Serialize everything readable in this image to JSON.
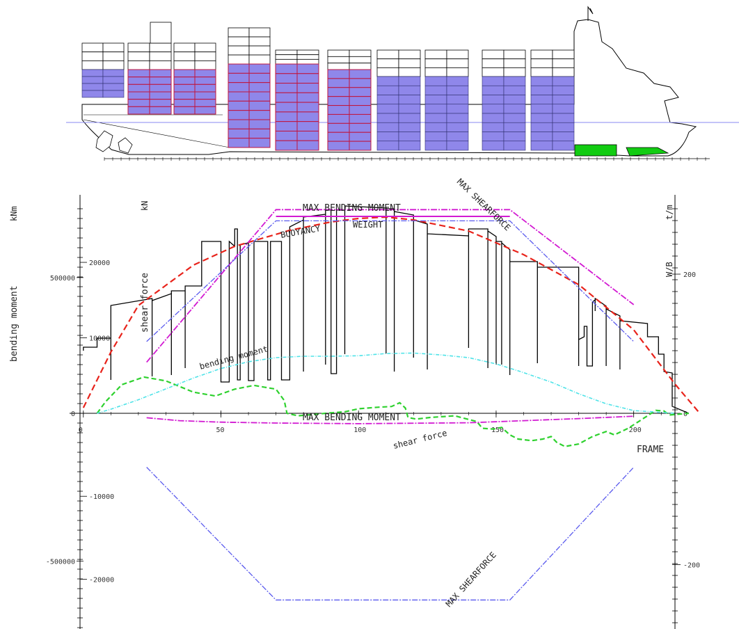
{
  "chart_data": {
    "type": "line",
    "frame_label": "FRAME",
    "x_range": [
      -5,
      215
    ],
    "x_ticks": [
      {
        "value": 0,
        "label": "0"
      },
      {
        "value": 50,
        "label": "50"
      },
      {
        "value": 100,
        "label": "100"
      },
      {
        "value": 150,
        "label": "150"
      },
      {
        "value": 200,
        "label": "200"
      }
    ],
    "axes": {
      "bending_moment": {
        "label": "bending moment",
        "unit": "kNm",
        "range": [
          -730000,
          820000
        ],
        "ticks": [
          {
            "value": 500000,
            "label": "500000"
          },
          {
            "value": 0,
            "label": "0"
          },
          {
            "value": -500000,
            "label": "-500000"
          }
        ]
      },
      "shear_force": {
        "label": "kN",
        "range": [
          -26000,
          29500
        ],
        "ticks": [
          {
            "value": 20000,
            "label": "20000"
          },
          {
            "value": 10000,
            "label": "10000"
          },
          {
            "value": 0,
            "label": "0"
          },
          {
            "value": -10000,
            "label": "-10000"
          },
          {
            "value": -20000,
            "label": "-20000"
          }
        ]
      },
      "weight_buoyancy": {
        "label": "W/B",
        "unit": "t/m",
        "range": [
          -285,
          320
        ],
        "ticks": [
          {
            "value": 200,
            "label": "200"
          },
          {
            "value": 0,
            "label": "0"
          },
          {
            "value": -200,
            "label": "-200"
          }
        ]
      }
    },
    "annotations": {
      "max_bending_moment": "MAX BENDING MOMENT",
      "max_shearforce": "MAX SHEARFORCE",
      "buoyancy": "BUOYANCY",
      "weight": "WEIGHT",
      "shear_force": "shear force",
      "bending_moment": "bending moment"
    },
    "colors": {
      "weight": "#000000",
      "buoyancy": "#e8231b",
      "bending_moment": "#4fe3e8",
      "shear_force": "#2ed12e",
      "max_bending_moment": "#d21ad2",
      "max_shearforce": "#5a5aee",
      "container_fill": "#8f87ea",
      "tank_fill": "#12cc12"
    },
    "series": [
      {
        "name": "WEIGHT",
        "axis": "weight_buoyancy",
        "points": [
          [
            0,
            90
          ],
          [
            0,
            95
          ],
          [
            5,
            95
          ],
          [
            5,
            108
          ],
          [
            10,
            108
          ],
          [
            10,
            48
          ],
          [
            10,
            155
          ],
          [
            25,
            165
          ],
          [
            25,
            53
          ],
          [
            25,
            162
          ],
          [
            32,
            172
          ],
          [
            32,
            55
          ],
          [
            32,
            176
          ],
          [
            37,
            176
          ],
          [
            37,
            65
          ],
          [
            37,
            183
          ],
          [
            43,
            183
          ],
          [
            43,
            247
          ],
          [
            50,
            247
          ],
          [
            50,
            45
          ],
          [
            53,
            45
          ],
          [
            53,
            247
          ],
          [
            55,
            240
          ],
          [
            55,
            265
          ],
          [
            56,
            265
          ],
          [
            56,
            48
          ],
          [
            57,
            48
          ],
          [
            57,
            242
          ],
          [
            60,
            245
          ],
          [
            60,
            47
          ],
          [
            62,
            47
          ],
          [
            62,
            247
          ],
          [
            67,
            247
          ],
          [
            67,
            48
          ],
          [
            68,
            48
          ],
          [
            68,
            247
          ],
          [
            72,
            247
          ],
          [
            72,
            48
          ],
          [
            75,
            48
          ],
          [
            75,
            268
          ],
          [
            80,
            278
          ],
          [
            80,
            60
          ],
          [
            80,
            282
          ],
          [
            88,
            286
          ],
          [
            88,
            70
          ],
          [
            88,
            292
          ],
          [
            90,
            292
          ],
          [
            90,
            57
          ],
          [
            92,
            57
          ],
          [
            92,
            292
          ],
          [
            95,
            292
          ],
          [
            95,
            85
          ],
          [
            95,
            298
          ],
          [
            110,
            295
          ],
          [
            110,
            86
          ],
          [
            110,
            294
          ],
          [
            113,
            294
          ],
          [
            113,
            60
          ],
          [
            113,
            290
          ],
          [
            120,
            285
          ],
          [
            120,
            80
          ],
          [
            120,
            278
          ],
          [
            125,
            272
          ],
          [
            125,
            63
          ],
          [
            125,
            258
          ],
          [
            140,
            255
          ],
          [
            140,
            94
          ],
          [
            140,
            265
          ],
          [
            147,
            265
          ],
          [
            147,
            65
          ],
          [
            147,
            262
          ],
          [
            150,
            254
          ],
          [
            150,
            70
          ],
          [
            150,
            247
          ],
          [
            152,
            247
          ],
          [
            152,
            70
          ],
          [
            152,
            245
          ],
          [
            155,
            235
          ],
          [
            155,
            55
          ],
          [
            155,
            218
          ],
          [
            165,
            218
          ],
          [
            165,
            72
          ],
          [
            165,
            210
          ],
          [
            180,
            210
          ],
          [
            180,
            68
          ],
          [
            180,
            106
          ],
          [
            182,
            110
          ],
          [
            182,
            125
          ],
          [
            183,
            125
          ],
          [
            183,
            68
          ],
          [
            185,
            68
          ],
          [
            185,
            160
          ],
          [
            186,
            163
          ],
          [
            186,
            147
          ],
          [
            186,
            165
          ],
          [
            190,
            154
          ],
          [
            190,
            68
          ],
          [
            190,
            150
          ],
          [
            195,
            140
          ],
          [
            195,
            63
          ],
          [
            195,
            133
          ],
          [
            205,
            129
          ],
          [
            205,
            110
          ],
          [
            209,
            110
          ],
          [
            209,
            85
          ],
          [
            211,
            85
          ],
          [
            211,
            60
          ],
          [
            214,
            58
          ],
          [
            214,
            10
          ],
          [
            220,
            0
          ]
        ]
      },
      {
        "name": "BUOYANCY",
        "axis": "weight_buoyancy",
        "points": [
          [
            0,
            8
          ],
          [
            10,
            88
          ],
          [
            20,
            155
          ],
          [
            40,
            213
          ],
          [
            55,
            240
          ],
          [
            75,
            263
          ],
          [
            90,
            275
          ],
          [
            100,
            280
          ],
          [
            110,
            282
          ],
          [
            120,
            278
          ],
          [
            140,
            262
          ],
          [
            160,
            228
          ],
          [
            180,
            185
          ],
          [
            200,
            120
          ],
          [
            215,
            42
          ],
          [
            224,
            0
          ]
        ]
      },
      {
        "name": "shear force",
        "axis": "shear_force",
        "points": [
          [
            5,
            0
          ],
          [
            8,
            1500
          ],
          [
            14,
            3800
          ],
          [
            22,
            4800
          ],
          [
            30,
            4300
          ],
          [
            40,
            2800
          ],
          [
            48,
            2300
          ],
          [
            55,
            3200
          ],
          [
            62,
            3700
          ],
          [
            70,
            3200
          ],
          [
            73,
            1700
          ],
          [
            74,
            0
          ],
          [
            78,
            -300
          ],
          [
            85,
            -100
          ],
          [
            88,
            0
          ],
          [
            95,
            200
          ],
          [
            100,
            600
          ],
          [
            107,
            800
          ],
          [
            112,
            900
          ],
          [
            115,
            1400
          ],
          [
            117,
            700
          ],
          [
            118,
            -500
          ],
          [
            121,
            -700
          ],
          [
            126,
            -500
          ],
          [
            135,
            -300
          ],
          [
            143,
            -1000
          ],
          [
            145,
            -1800
          ],
          [
            149,
            -1900
          ],
          [
            152,
            -1700
          ],
          [
            155,
            -2600
          ],
          [
            158,
            -3100
          ],
          [
            163,
            -3300
          ],
          [
            167,
            -3100
          ],
          [
            170,
            -2800
          ],
          [
            172,
            -3500
          ],
          [
            175,
            -4000
          ],
          [
            180,
            -3700
          ],
          [
            185,
            -2800
          ],
          [
            190,
            -2200
          ],
          [
            193,
            -2600
          ],
          [
            198,
            -1800
          ],
          [
            205,
            -300
          ],
          [
            208,
            400
          ],
          [
            211,
            300
          ],
          [
            213,
            -200
          ],
          [
            220,
            0
          ]
        ]
      },
      {
        "name": "bending moment",
        "axis": "bending_moment",
        "points": [
          [
            5,
            0
          ],
          [
            10,
            15000
          ],
          [
            20,
            50000
          ],
          [
            30,
            90000
          ],
          [
            40,
            130000
          ],
          [
            50,
            165000
          ],
          [
            60,
            190000
          ],
          [
            70,
            205000
          ],
          [
            80,
            210000
          ],
          [
            90,
            210000
          ],
          [
            100,
            212000
          ],
          [
            110,
            220000
          ],
          [
            120,
            222000
          ],
          [
            130,
            215000
          ],
          [
            140,
            205000
          ],
          [
            150,
            182000
          ],
          [
            160,
            150000
          ],
          [
            170,
            115000
          ],
          [
            180,
            72000
          ],
          [
            190,
            35000
          ],
          [
            200,
            10000
          ],
          [
            215,
            0
          ]
        ]
      },
      {
        "name": "MAX BENDING MOMENT",
        "axis": "bending_moment",
        "points": [
          [
            23,
            -15000
          ],
          [
            35,
            -25000
          ],
          [
            50,
            -30000
          ],
          [
            70,
            -33000
          ],
          [
            100,
            -35000
          ],
          [
            140,
            -32000
          ],
          [
            160,
            -25000
          ],
          [
            180,
            -18000
          ],
          [
            200,
            -10000
          ]
        ]
      },
      {
        "name": "MAX BENDING MOMENT",
        "axis": "bending_moment",
        "points": [
          [
            23,
            188000
          ],
          [
            70,
            750000
          ],
          [
            155,
            750000
          ],
          [
            200,
            400000
          ]
        ]
      },
      {
        "name": "MAX SHEARFORCE",
        "axis": "shear_force",
        "points": [
          [
            23,
            9500
          ],
          [
            70,
            25500
          ],
          [
            155,
            25500
          ],
          [
            200,
            9500
          ]
        ]
      },
      {
        "name": "MAX SHEARFORCE",
        "axis": "shear_force",
        "points": [
          [
            23,
            -6500
          ],
          [
            70,
            -22500
          ],
          [
            155,
            -22500
          ],
          [
            200,
            -6500
          ]
        ]
      }
    ]
  }
}
